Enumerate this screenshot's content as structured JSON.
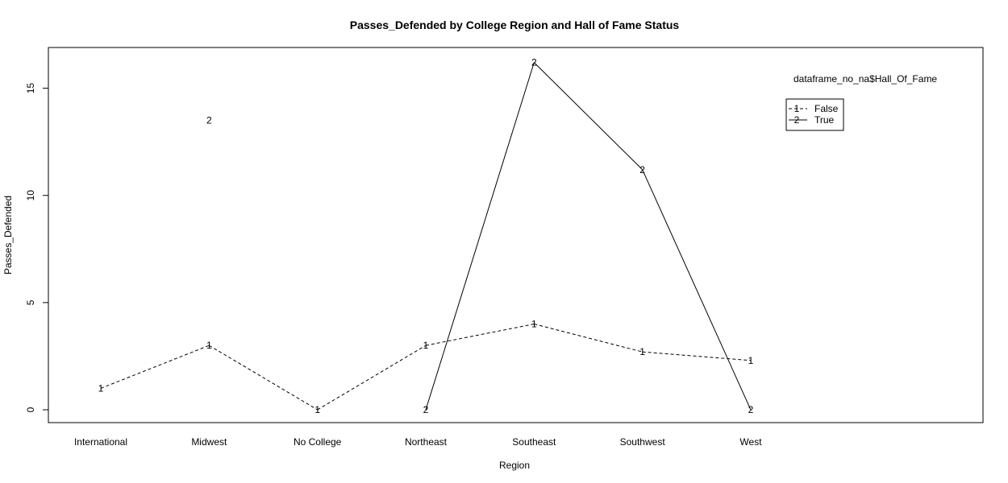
{
  "chart_data": {
    "type": "line",
    "title": "Passes_Defended by College Region and Hall of Fame Status",
    "xlabel": "Region",
    "ylabel": "Passes_Defended",
    "categories": [
      "International",
      "Midwest",
      "No College",
      "Northeast",
      "Southeast",
      "Southwest",
      "West"
    ],
    "yticks": [
      "0",
      "5",
      "10",
      "15"
    ],
    "ylim": [
      -0.6,
      16.9
    ],
    "legend": {
      "title": "dataframe_no_na$Hall_Of_Fame",
      "placement": "top-right",
      "entries": [
        {
          "symbol": "1",
          "label": "False"
        },
        {
          "symbol": "2",
          "label": "True"
        }
      ]
    },
    "series": [
      {
        "name": "False",
        "symbol": "1",
        "line": "dashed",
        "values": [
          1.0,
          3.0,
          0.0,
          3.0,
          4.0,
          2.7,
          2.3
        ]
      },
      {
        "name": "True",
        "symbol": "2",
        "line": "solid",
        "values": [
          null,
          13.5,
          null,
          0.0,
          16.2,
          11.2,
          0.0
        ]
      }
    ]
  }
}
